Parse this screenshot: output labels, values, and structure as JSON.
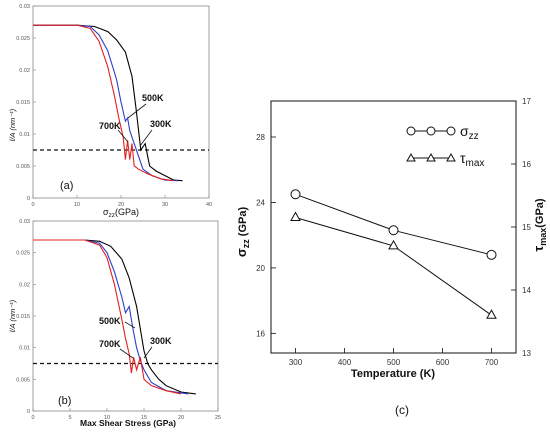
{
  "chart_data": [
    {
      "type": "line",
      "panel_label": "(a)",
      "xlabel": "σzz(GPa)",
      "xlabel_main": "σ",
      "xlabel_sub": "zz",
      "xlabel_unit": "(GPa)",
      "ylabel": "l/A (nm⁻¹)",
      "xlim": [
        0,
        40
      ],
      "ylim": [
        0,
        0.03
      ],
      "xticks": [
        0,
        10,
        20,
        30,
        40
      ],
      "yticks": [
        0,
        0.005,
        0.01,
        0.015,
        0.02,
        0.025,
        0.03
      ],
      "ytick_labels": [
        "0",
        "0.005",
        "0.01",
        "0.015",
        "0.02",
        "0.025",
        "0.03"
      ],
      "reference_line": {
        "y": 0.0075,
        "style": "dashed"
      },
      "series": [
        {
          "name": "300K",
          "color": "#000000",
          "x": [
            0,
            10,
            14,
            17,
            19,
            21,
            22.5,
            23.5,
            24.5,
            25.5,
            26.5,
            28,
            30,
            32,
            34
          ],
          "y": [
            0.027,
            0.027,
            0.0268,
            0.026,
            0.0247,
            0.0228,
            0.019,
            0.0135,
            0.0075,
            0.0085,
            0.005,
            0.0042,
            0.0035,
            0.0028,
            0.0027
          ]
        },
        {
          "name": "500K",
          "color": "#2b3fc8",
          "x": [
            0,
            10,
            13,
            15,
            17,
            19,
            20,
            21,
            21.5,
            22,
            23,
            24,
            25,
            27,
            30,
            33
          ],
          "y": [
            0.027,
            0.027,
            0.0268,
            0.0255,
            0.023,
            0.0185,
            0.015,
            0.012,
            0.0125,
            0.0105,
            0.0085,
            0.0065,
            0.0045,
            0.0035,
            0.0028,
            0.0027
          ]
        },
        {
          "name": "700K",
          "color": "#e02020",
          "x": [
            0,
            10,
            13,
            15,
            17,
            18.5,
            19.5,
            20.5,
            21,
            21.5,
            22,
            22.5,
            23,
            24,
            26,
            29,
            32
          ],
          "y": [
            0.027,
            0.027,
            0.0265,
            0.0245,
            0.0205,
            0.016,
            0.0125,
            0.0095,
            0.006,
            0.009,
            0.006,
            0.0085,
            0.005,
            0.0045,
            0.0038,
            0.003,
            0.0027
          ]
        }
      ],
      "annotations": [
        "500K",
        "700K",
        "300K"
      ]
    },
    {
      "type": "line",
      "panel_label": "(b)",
      "xlabel": "Max Shear Stress (GPa)",
      "ylabel": "l/A (nm⁻¹)",
      "xlim": [
        0,
        25
      ],
      "ylim": [
        0,
        0.03
      ],
      "xticks": [
        0,
        5,
        10,
        15,
        20,
        25
      ],
      "yticks": [
        0,
        0.005,
        0.01,
        0.015,
        0.02,
        0.025,
        0.03
      ],
      "ytick_labels": [
        "0",
        "0.005",
        "0.01",
        "0.015",
        "0.02",
        "0.025",
        "0.03"
      ],
      "reference_line": {
        "y": 0.0075,
        "style": "dashed"
      },
      "series": [
        {
          "name": "300K",
          "color": "#000000",
          "x": [
            0,
            7,
            9,
            10.5,
            12,
            13,
            14,
            14.5,
            15,
            15.5,
            16,
            17,
            18,
            20,
            22
          ],
          "y": [
            0.027,
            0.027,
            0.0268,
            0.026,
            0.024,
            0.021,
            0.0165,
            0.013,
            0.0095,
            0.0075,
            0.0065,
            0.005,
            0.004,
            0.003,
            0.0027
          ]
        },
        {
          "name": "500K",
          "color": "#2b3fc8",
          "x": [
            0,
            7,
            9,
            10,
            11,
            12,
            12.5,
            13,
            13.5,
            14,
            14.5,
            15,
            16,
            18,
            21
          ],
          "y": [
            0.027,
            0.027,
            0.0265,
            0.025,
            0.022,
            0.018,
            0.0155,
            0.0165,
            0.013,
            0.01,
            0.008,
            0.0065,
            0.0045,
            0.0032,
            0.0027
          ]
        },
        {
          "name": "700K",
          "color": "#e02020",
          "x": [
            0,
            7,
            9,
            10,
            11,
            12,
            12.5,
            13,
            13.3,
            13.6,
            14,
            14.5,
            15,
            16,
            18,
            20
          ],
          "y": [
            0.027,
            0.027,
            0.0262,
            0.0242,
            0.02,
            0.0145,
            0.0115,
            0.009,
            0.006,
            0.0085,
            0.0065,
            0.0085,
            0.005,
            0.004,
            0.0032,
            0.0027
          ]
        }
      ],
      "annotations": [
        "500K",
        "700K",
        "300K"
      ]
    },
    {
      "type": "line",
      "panel_label": "(c)",
      "xlabel": "Temperature (K)",
      "ylabel_left": "σzz (GPa)",
      "ylabel_right": "τmax(GPa)",
      "xlim": [
        250,
        750
      ],
      "ylim_left": [
        14.8,
        30.2
      ],
      "ylim_right": [
        13,
        17
      ],
      "xticks": [
        300,
        400,
        500,
        600,
        700
      ],
      "yticks_left": [
        16,
        20,
        24,
        28
      ],
      "yticks_right": [
        13,
        14,
        15,
        16,
        17
      ],
      "series": [
        {
          "name": "σzz",
          "axis": "left",
          "marker": "circle",
          "x": [
            300,
            500,
            700
          ],
          "y": [
            24.5,
            22.3,
            20.8
          ]
        },
        {
          "name": "τmax",
          "axis": "right",
          "marker": "triangle",
          "x": [
            300,
            500,
            700
          ],
          "y": [
            15.15,
            14.7,
            13.6
          ]
        }
      ],
      "legend_position": "top-right"
    }
  ]
}
